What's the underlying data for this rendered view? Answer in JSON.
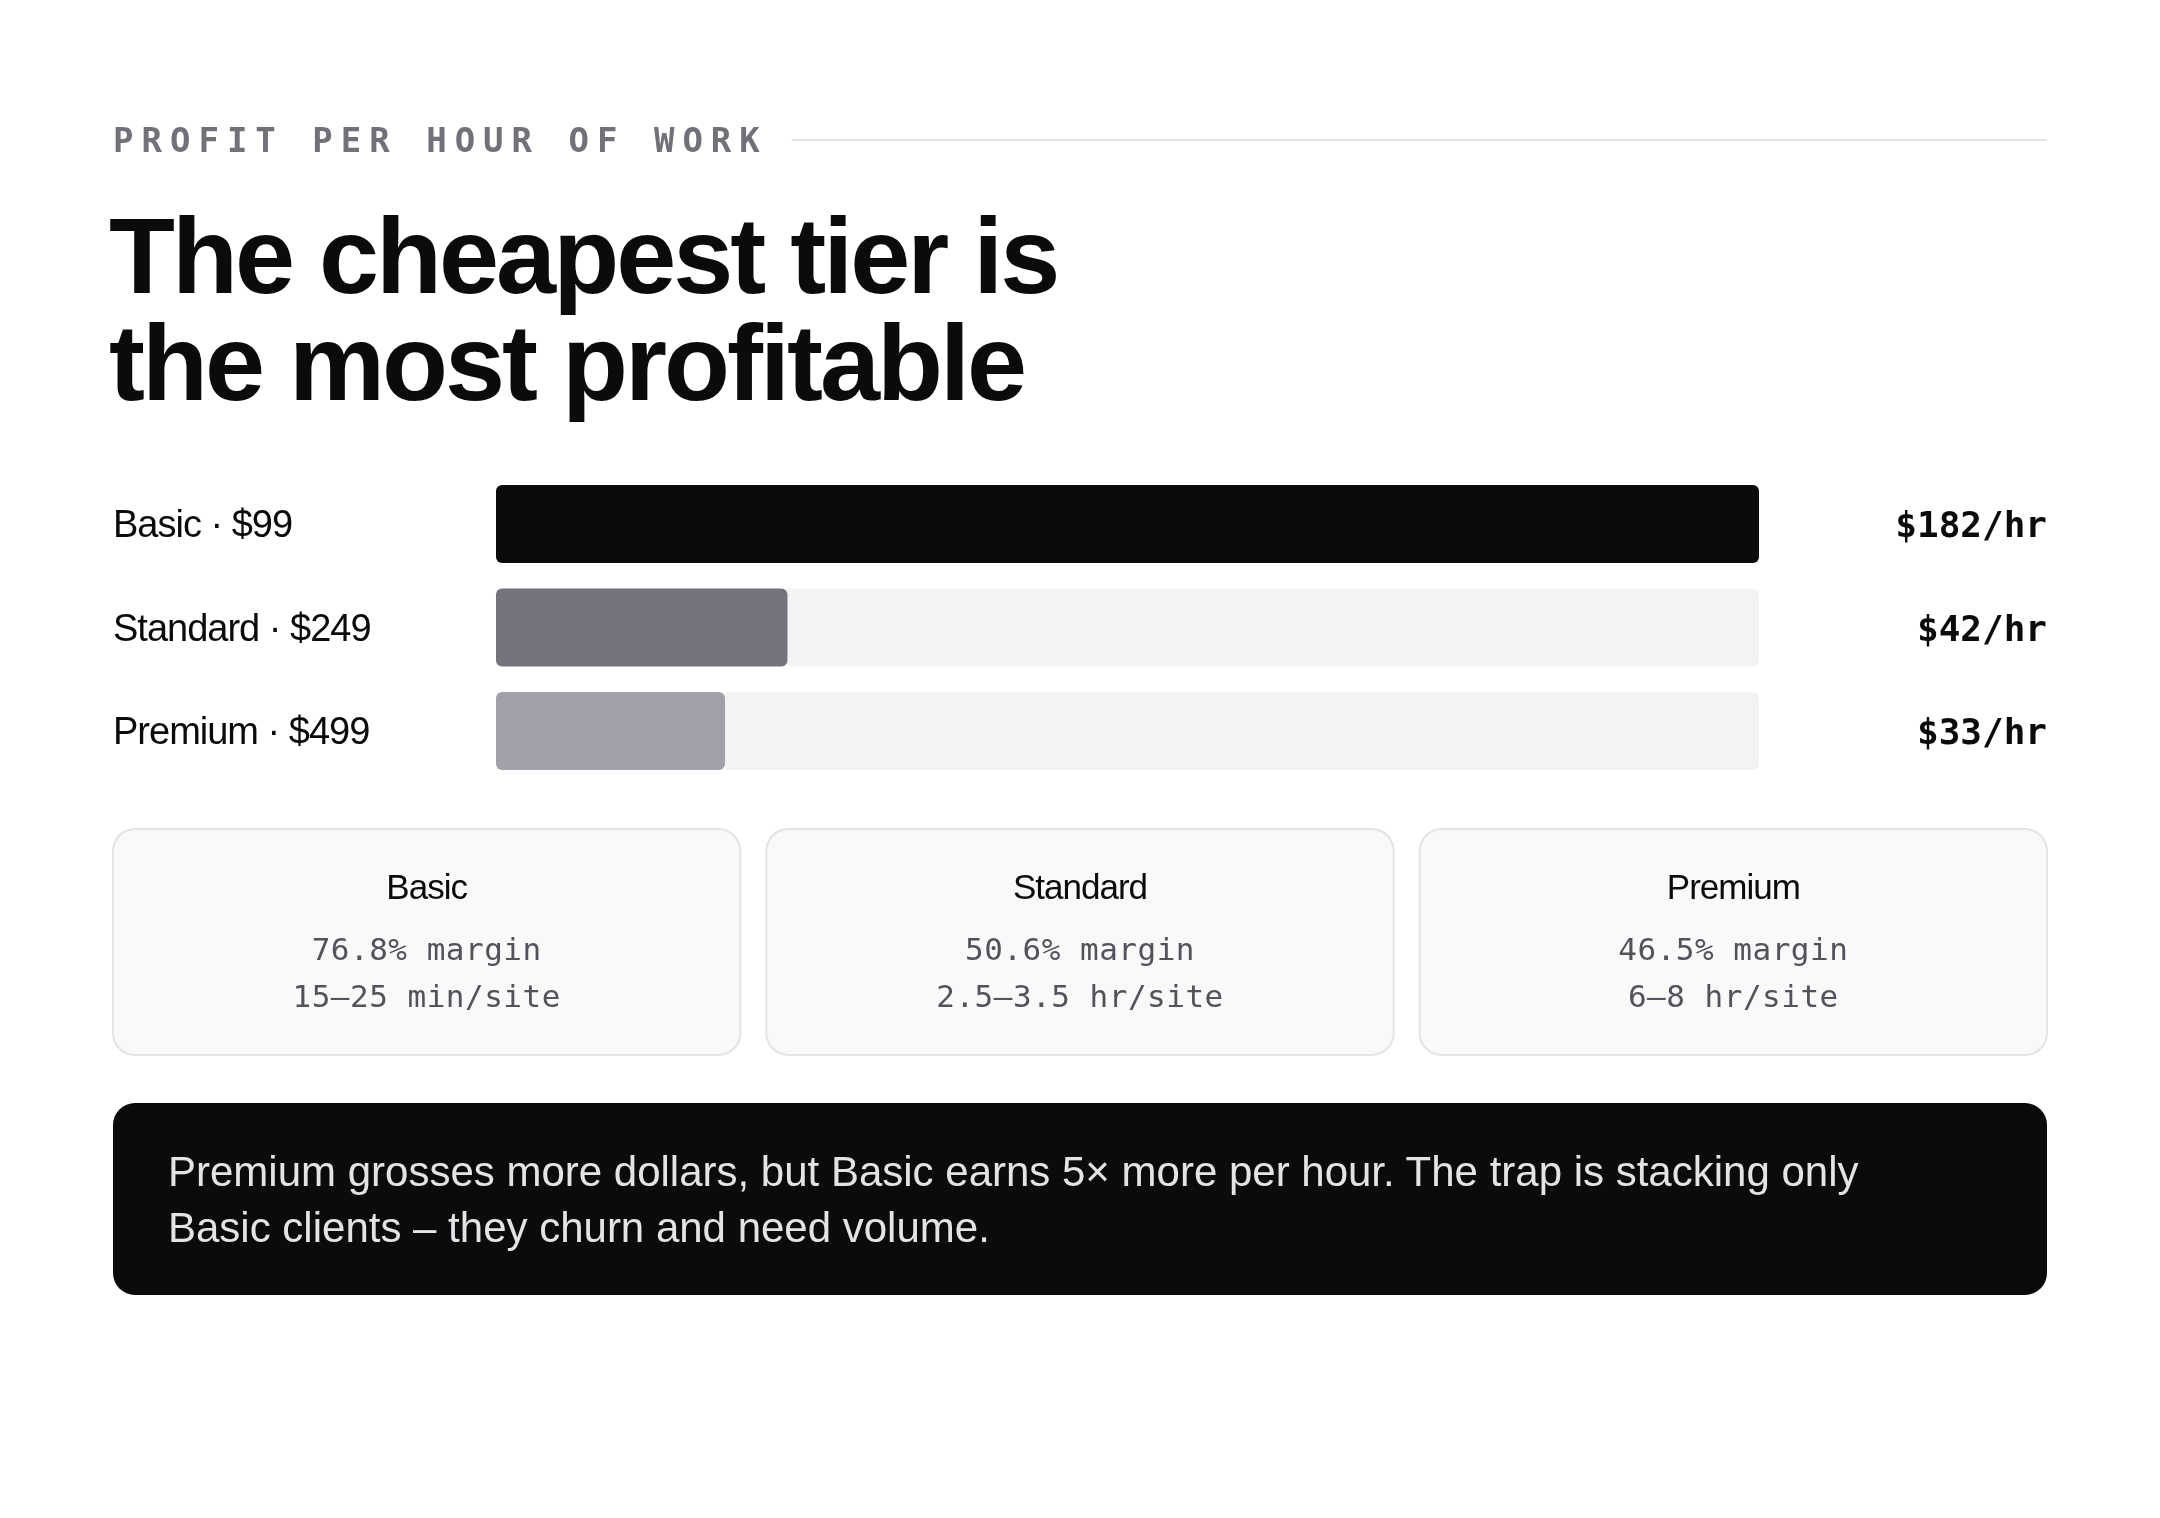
{
  "chart_data": [
    {
      "type": "bar",
      "orientation": "horizontal",
      "stacked": true,
      "subtitle": "PROFIT PER HOUR OF WORK",
      "title": "The cheapest tier is the most profitable",
      "categories": [
        "Basic · $99",
        "Standard · $249",
        "Premium · $499"
      ],
      "series": [
        {
          "values": [
            182,
            42,
            33
          ],
          "colors": [
            "#0b0b0d",
            "#74747f",
            "#a1a1ab"
          ],
          "value_labels": [
            "$182/hr",
            "$42/hr",
            "$33/hr"
          ]
        },
        {
          "values": [
            0,
            140,
            149
          ],
          "color": "#f3f3f3"
        }
      ],
      "xlim": [
        0,
        182
      ],
      "annotations": [
        "Premium grosses more dollars, but Basic earns 5× more per hour. The trap is stacking only Basic clients – they churn and need volume."
      ]
    },
    {
      "type": "other",
      "title": "Basic",
      "annotations": [
        "76.8% margin",
        "15–25 min/site"
      ]
    },
    {
      "type": "other",
      "title": "Standard",
      "annotations": [
        "50.6% margin",
        "2.5–3.5 hr/site"
      ]
    },
    {
      "type": "other",
      "title": "Premium",
      "annotations": [
        "46.5% margin",
        "6–8 hr/site"
      ]
    }
  ]
}
